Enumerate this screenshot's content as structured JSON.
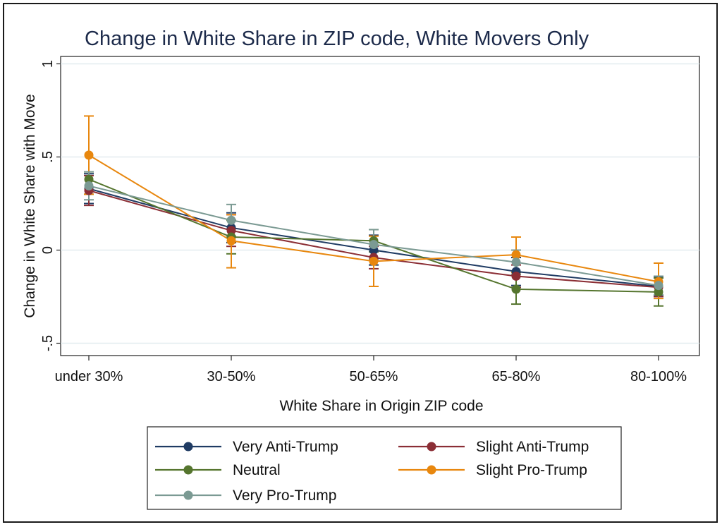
{
  "chart_data": {
    "type": "line",
    "title": "Change in White Share in ZIP code, White Movers Only",
    "xlabel": "White Share in Origin ZIP code",
    "ylabel": "Change in White Share with Move",
    "categories": [
      "under 30%",
      "30-50%",
      "50-65%",
      "65-80%",
      "80-100%"
    ],
    "yticks": [
      -0.5,
      0,
      0.5,
      1
    ],
    "ytick_labels": [
      "-.5",
      "0",
      ".5",
      "1"
    ],
    "ylim": [
      -0.6,
      1.03
    ],
    "grid": true,
    "legend_position": "bottom",
    "error_bars": true,
    "series": [
      {
        "name": "Very Anti-Trump",
        "color": "#1f3b63",
        "values": [
          0.33,
          0.12,
          0.0,
          -0.115,
          -0.195
        ],
        "ci_low": [
          0.25,
          0.04,
          -0.08,
          -0.19,
          -0.245
        ],
        "ci_high": [
          0.41,
          0.2,
          0.08,
          -0.04,
          -0.145
        ]
      },
      {
        "name": "Slight Anti-Trump",
        "color": "#8b2e35",
        "values": [
          0.32,
          0.105,
          -0.04,
          -0.14,
          -0.2
        ],
        "ci_low": [
          0.24,
          0.02,
          -0.1,
          -0.2,
          -0.25
        ],
        "ci_high": [
          0.4,
          0.19,
          0.02,
          -0.08,
          -0.15
        ]
      },
      {
        "name": "Neutral",
        "color": "#55752e",
        "values": [
          0.38,
          0.07,
          0.05,
          -0.21,
          -0.225
        ],
        "ci_low": [
          0.3,
          -0.02,
          -0.01,
          -0.29,
          -0.3
        ],
        "ci_high": [
          0.42,
          0.16,
          0.11,
          -0.13,
          -0.15
        ]
      },
      {
        "name": "Slight Pro-Trump",
        "color": "#e8870e",
        "values": [
          0.51,
          0.05,
          -0.06,
          -0.025,
          -0.17
        ],
        "ci_low": [
          0.3,
          -0.095,
          -0.195,
          -0.12,
          -0.26
        ],
        "ci_high": [
          0.72,
          0.19,
          0.075,
          0.07,
          -0.07
        ]
      },
      {
        "name": "Very Pro-Trump",
        "color": "#7b9a93",
        "values": [
          0.345,
          0.16,
          0.03,
          -0.065,
          -0.19
        ],
        "ci_low": [
          0.27,
          0.075,
          -0.05,
          -0.13,
          -0.24
        ],
        "ci_high": [
          0.42,
          0.245,
          0.11,
          0.0,
          -0.14
        ]
      }
    ]
  }
}
